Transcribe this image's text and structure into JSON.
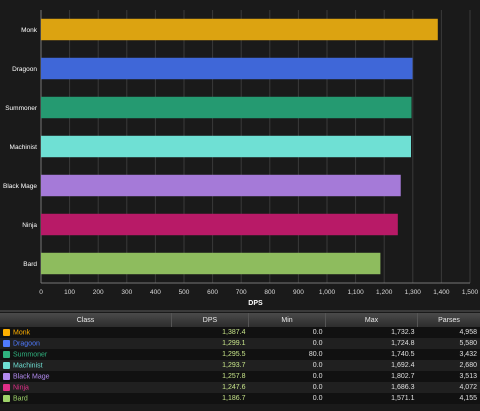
{
  "chart_data": {
    "type": "bar",
    "orientation": "horizontal",
    "categories": [
      "Monk",
      "Dragoon",
      "Summoner",
      "Machinist",
      "Black Mage",
      "Ninja",
      "Bard"
    ],
    "values": [
      1387.4,
      1299.1,
      1295.5,
      1293.7,
      1257.8,
      1247.6,
      1186.7
    ],
    "colors": [
      "#dca311",
      "#3f67d8",
      "#259a71",
      "#6fe0d4",
      "#a57ad8",
      "#b81a67",
      "#8ebc5e"
    ],
    "xlabel": "DPS",
    "xlim": [
      0,
      1500
    ],
    "xticks": [
      "0",
      "100",
      "200",
      "300",
      "400",
      "500",
      "600",
      "700",
      "800",
      "900",
      "1,000",
      "1,100",
      "1,200",
      "1,300",
      "1,400",
      "1,500"
    ],
    "grid": true
  },
  "table": {
    "headers": [
      "Class",
      "DPS",
      "Min",
      "Max",
      "Parses"
    ],
    "rows": [
      {
        "cls": "Monk",
        "color": "#ffb000",
        "icon": "monk-icon",
        "dps": "1,387.4",
        "min": "0.0",
        "max": "1,732.3",
        "parses": "4,958"
      },
      {
        "cls": "Dragoon",
        "color": "#4f7bff",
        "icon": "dragoon-icon",
        "dps": "1,299.1",
        "min": "0.0",
        "max": "1,724.8",
        "parses": "5,580"
      },
      {
        "cls": "Summoner",
        "color": "#2fb37f",
        "icon": "summoner-icon",
        "dps": "1,295.5",
        "min": "80.0",
        "max": "1,740.5",
        "parses": "3,432"
      },
      {
        "cls": "Machinist",
        "color": "#6fe0d4",
        "icon": "machinist-icon",
        "dps": "1,293.7",
        "min": "0.0",
        "max": "1,692.4",
        "parses": "2,680"
      },
      {
        "cls": "Black Mage",
        "color": "#b38bf0",
        "icon": "black-mage-icon",
        "dps": "1,257.8",
        "min": "0.0",
        "max": "1,802.7",
        "parses": "3,513"
      },
      {
        "cls": "Ninja",
        "color": "#e02f88",
        "icon": "ninja-icon",
        "dps": "1,247.6",
        "min": "0.0",
        "max": "1,686.3",
        "parses": "4,072"
      },
      {
        "cls": "Bard",
        "color": "#9ed36a",
        "icon": "bard-icon",
        "dps": "1,186.7",
        "min": "0.0",
        "max": "1,571.1",
        "parses": "4,155"
      }
    ]
  }
}
